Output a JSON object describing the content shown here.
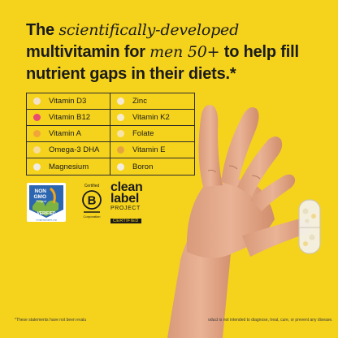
{
  "headline": {
    "part1": "The ",
    "italic": "scientifically-developed",
    "part2": " multivitamin for ",
    "italic2": "men 50+",
    "part3": " to help fill nutrient gaps in their diets.*"
  },
  "nutrients": [
    {
      "label": "Vitamin D3",
      "color": "#f3e2c9"
    },
    {
      "label": "Zinc",
      "color": "#f4e9d6"
    },
    {
      "label": "Vitamin B12",
      "color": "#e94a72"
    },
    {
      "label": "Vitamin K2",
      "color": "#f6ebcf"
    },
    {
      "label": "Vitamin A",
      "color": "#f2a53a"
    },
    {
      "label": "Folate",
      "color": "#f7e4a8"
    },
    {
      "label": "Omega-3 DHA",
      "color": "#f7dd9a"
    },
    {
      "label": "Vitamin E",
      "color": "#e5a43e"
    },
    {
      "label": "Magnesium",
      "color": "#f1ece4"
    },
    {
      "label": "Boron",
      "color": "#f3ecdf"
    }
  ],
  "badges": {
    "nongmo": {
      "line1": "NON",
      "line2": "GMO",
      "line3": "Project",
      "line4": "VERIFIED",
      "url": "nongmoproject.org"
    },
    "bcorp": {
      "top": "Certified",
      "letter": "B",
      "bottom": "Corporation"
    },
    "cleanlabel": {
      "word1": "clean",
      "word2": "label",
      "project": "PROJECT",
      "certified": "CERTIFIED"
    }
  },
  "disclaimer": {
    "left": "*These statements have not been evalu",
    "right": "oduct is not intended to diagnose, treat, cure, or prevent any disease."
  }
}
